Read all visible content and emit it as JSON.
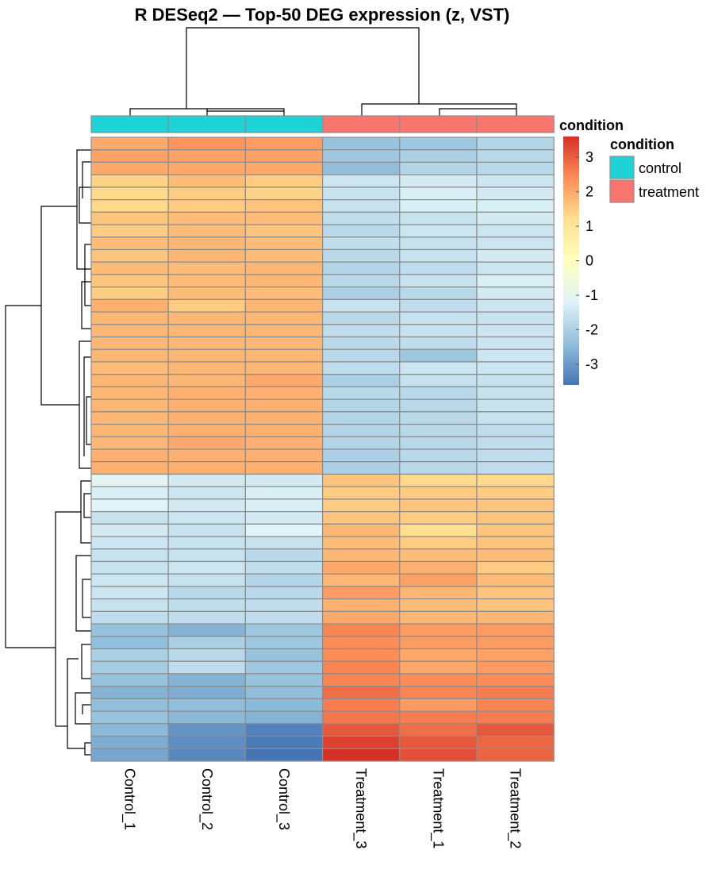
{
  "chart_data": {
    "type": "heatmap",
    "title": "R DESeq2 — Top-50 DEG expression (z, VST)",
    "columns": [
      "Control_1",
      "Control_2",
      "Control_3",
      "Treatment_3",
      "Treatment_1",
      "Treatment_2"
    ],
    "column_groups": [
      "control",
      "control",
      "control",
      "treatment",
      "treatment",
      "treatment"
    ],
    "annotation": {
      "title": "condition",
      "levels": [
        {
          "name": "control",
          "color": "#1ED2D6"
        },
        {
          "name": "treatment",
          "color": "#F8766D"
        }
      ]
    },
    "color_scale": {
      "title": "",
      "min": -3.6,
      "max": 3.6,
      "ticks": [
        3,
        2,
        1,
        0,
        -1,
        -2,
        -3
      ],
      "tick_labels": [
        "3",
        "2",
        "1",
        "0",
        "-1",
        "-2",
        "-3"
      ],
      "stops": [
        "#4575B4",
        "#91BFDB",
        "#E0F3F8",
        "#FFFFBF",
        "#FEE090",
        "#FC8D59",
        "#D73027"
      ]
    },
    "values": [
      [
        2.0,
        2.3,
        2.2,
        -2.3,
        -2.2,
        -1.9
      ],
      [
        2.1,
        2.1,
        2.1,
        -2.2,
        -2.0,
        -1.8
      ],
      [
        2.0,
        2.0,
        2.0,
        -2.4,
        -1.9,
        -1.8
      ],
      [
        1.4,
        1.7,
        1.5,
        -1.5,
        -1.4,
        -1.5
      ],
      [
        1.3,
        1.5,
        1.4,
        -1.6,
        -1.3,
        -1.4
      ],
      [
        1.3,
        1.5,
        1.6,
        -1.6,
        -1.3,
        -1.3
      ],
      [
        1.6,
        1.7,
        1.7,
        -1.7,
        -1.6,
        -1.4
      ],
      [
        1.5,
        1.7,
        1.6,
        -1.8,
        -1.5,
        -1.5
      ],
      [
        1.7,
        1.8,
        1.7,
        -1.7,
        -1.6,
        -1.5
      ],
      [
        1.6,
        1.8,
        1.7,
        -1.8,
        -1.6,
        -1.4
      ],
      [
        1.7,
        1.7,
        1.8,
        -1.9,
        -1.7,
        -1.5
      ],
      [
        1.6,
        1.7,
        1.8,
        -1.8,
        -1.6,
        -1.3
      ],
      [
        1.5,
        1.7,
        1.7,
        -2.0,
        -1.8,
        -1.4
      ],
      [
        1.9,
        1.5,
        1.8,
        -1.6,
        -1.7,
        -1.5
      ],
      [
        1.8,
        1.8,
        1.8,
        -1.8,
        -1.6,
        -1.6
      ],
      [
        1.8,
        1.8,
        1.8,
        -1.7,
        -1.6,
        -1.5
      ],
      [
        1.8,
        1.8,
        1.8,
        -1.8,
        -1.7,
        -1.5
      ],
      [
        1.8,
        1.8,
        1.8,
        -1.8,
        -2.2,
        -1.5
      ],
      [
        1.7,
        1.8,
        1.8,
        -1.7,
        -1.5,
        -1.5
      ],
      [
        1.8,
        1.8,
        2.0,
        -2.0,
        -1.6,
        -1.6
      ],
      [
        1.8,
        1.9,
        1.9,
        -1.8,
        -1.8,
        -1.6
      ],
      [
        1.8,
        1.9,
        1.9,
        -1.9,
        -1.8,
        -1.6
      ],
      [
        1.8,
        1.9,
        1.9,
        -1.9,
        -1.8,
        -1.6
      ],
      [
        1.8,
        1.9,
        1.9,
        -1.9,
        -1.8,
        -1.7
      ],
      [
        1.8,
        2.0,
        1.9,
        -1.9,
        -1.8,
        -1.7
      ],
      [
        1.9,
        1.9,
        1.9,
        -2.0,
        -1.8,
        -1.7
      ],
      [
        1.9,
        1.9,
        1.9,
        -2.0,
        -1.8,
        -1.7
      ],
      [
        -1.1,
        -1.4,
        -1.4,
        1.6,
        1.3,
        1.3
      ],
      [
        -1.3,
        -1.5,
        -1.3,
        1.5,
        1.5,
        1.5
      ],
      [
        -1.2,
        -1.4,
        -1.3,
        1.5,
        1.6,
        1.6
      ],
      [
        -1.6,
        -1.5,
        -1.4,
        1.6,
        1.5,
        1.6
      ],
      [
        -1.4,
        -1.6,
        -1.2,
        1.8,
        1.2,
        1.6
      ],
      [
        -1.5,
        -1.6,
        -1.6,
        1.7,
        1.5,
        1.6
      ],
      [
        -1.6,
        -1.6,
        -1.8,
        1.8,
        1.7,
        1.7
      ],
      [
        -1.6,
        -1.5,
        -1.7,
        2.0,
        1.9,
        1.5
      ],
      [
        -1.5,
        -1.6,
        -1.9,
        1.8,
        2.1,
        1.7
      ],
      [
        -1.5,
        -1.8,
        -1.8,
        2.2,
        1.8,
        1.6
      ],
      [
        -1.6,
        -1.7,
        -1.7,
        1.9,
        1.7,
        1.6
      ],
      [
        -1.7,
        -1.7,
        -1.7,
        2.0,
        1.8,
        1.8
      ],
      [
        -2.3,
        -2.6,
        -2.2,
        2.5,
        2.2,
        2.2
      ],
      [
        -2.4,
        -2.0,
        -2.2,
        2.4,
        2.2,
        2.2
      ],
      [
        -2.0,
        -1.8,
        -2.3,
        2.4,
        2.0,
        2.1
      ],
      [
        -2.1,
        -1.7,
        -2.2,
        2.5,
        2.0,
        2.2
      ],
      [
        -2.3,
        -2.6,
        -2.3,
        2.5,
        2.4,
        2.4
      ],
      [
        -2.6,
        -2.7,
        -2.4,
        2.8,
        2.5,
        2.6
      ],
      [
        -2.4,
        -2.4,
        -2.5,
        2.6,
        2.2,
        2.5
      ],
      [
        -2.3,
        -2.5,
        -2.6,
        2.7,
        2.6,
        2.6
      ],
      [
        -2.5,
        -3.1,
        -3.4,
        3.1,
        2.8,
        3.1
      ],
      [
        -2.7,
        -3.2,
        -3.5,
        3.4,
        3.1,
        2.9
      ],
      [
        -2.8,
        -3.3,
        -3.6,
        3.6,
        3.2,
        2.9
      ]
    ]
  }
}
